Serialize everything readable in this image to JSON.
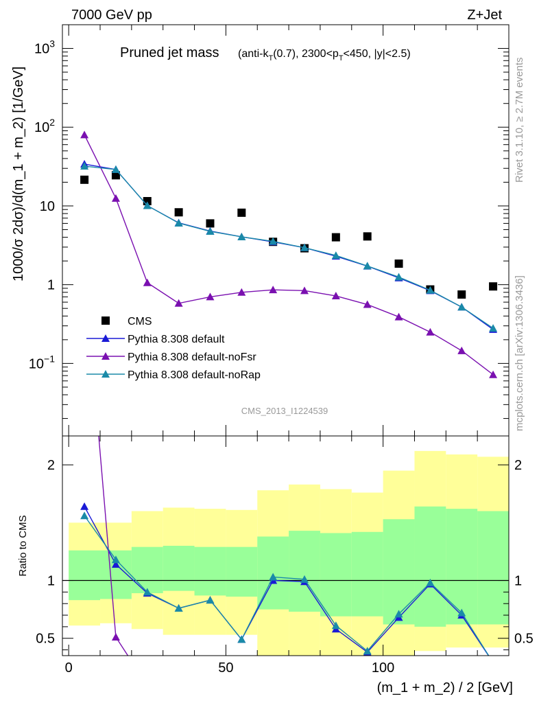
{
  "header": {
    "energy_label": "7000 GeV pp",
    "process_label": "Z+Jet"
  },
  "side_labels": {
    "rivet": "Rivet 3.1.10, ≥ 2.7M events",
    "site": "mcplots.cern.ch [arXiv:1306.3436]"
  },
  "watermark": "CMS_2013_I1224539",
  "colors": {
    "data": "#000000",
    "default": "#1a1ad6",
    "noFsr": "#7a10b0",
    "noRap": "#1a8aa8",
    "band_inner": "#99ff99",
    "band_outer": "#ffff99"
  },
  "chart_data": [
    {
      "type": "scatter",
      "title": "Pruned jet mass",
      "subtitle": "(anti-kT(0.7), 2300<pT<450, |y|<2.5)",
      "xlabel": "(m_1 + m_2) / 2 [GeV]",
      "ylabel": "1000/σ 2dσ)/d(m_1 + m_2) [1/GeV]",
      "y_scale": "log",
      "xlim": [
        -2,
        140
      ],
      "ylim": [
        0.012,
        2000
      ],
      "x": [
        5,
        15,
        25,
        35,
        45,
        55,
        65,
        75,
        85,
        95,
        105,
        115,
        125,
        135
      ],
      "series": [
        {
          "name": "CMS",
          "marker": "square",
          "values": [
            21.5,
            24.5,
            11.5,
            8.3,
            6.0,
            8.2,
            3.5,
            2.9,
            4.0,
            4.1,
            1.85,
            0.87,
            0.75,
            0.95
          ]
        },
        {
          "name": "Pythia 8.308 default",
          "marker": "triangle",
          "values": [
            34,
            29,
            10.1,
            6.1,
            4.8,
            4.05,
            3.5,
            2.95,
            2.3,
            1.72,
            1.22,
            0.84,
            0.52,
            0.27
          ]
        },
        {
          "name": "Pythia 8.308 default-noFsr",
          "marker": "triangle",
          "values": [
            80,
            12.5,
            1.06,
            0.58,
            0.7,
            0.8,
            0.86,
            0.84,
            0.72,
            0.56,
            0.39,
            0.25,
            0.145,
            0.072
          ]
        },
        {
          "name": "Pythia 8.308 default-noRap",
          "marker": "triangle",
          "values": [
            32,
            29,
            10.1,
            6.05,
            4.75,
            4.05,
            3.55,
            2.95,
            2.35,
            1.73,
            1.25,
            0.85,
            0.52,
            0.28
          ]
        }
      ],
      "tick_labels": {
        "y": [
          {
            "value": 0.1,
            "base": "10",
            "exp": "−1"
          },
          {
            "value": 1,
            "text": "1"
          },
          {
            "value": 10,
            "text": "10"
          },
          {
            "value": 100,
            "base": "10",
            "exp": "2"
          },
          {
            "value": 1000,
            "base": "10",
            "exp": "3"
          }
        ]
      },
      "legend": {
        "placement": "bottom-left",
        "entries": [
          "CMS",
          "Pythia 8.308 default",
          "Pythia 8.308 default-noFsr",
          "Pythia 8.308 default-noRap"
        ]
      }
    },
    {
      "type": "line",
      "ylabel": "Ratio to CMS",
      "xlabel": "(m_1 + m_2) / 2 [GeV]",
      "xlim": [
        -2,
        140
      ],
      "ylim": [
        0.35,
        2.25
      ],
      "x_ticks": [
        0,
        50,
        100
      ],
      "y_ticks": [
        0.5,
        1,
        2
      ],
      "bins": [
        [
          0,
          10
        ],
        [
          10,
          20
        ],
        [
          20,
          30
        ],
        [
          30,
          40
        ],
        [
          40,
          50
        ],
        [
          50,
          60
        ],
        [
          60,
          70
        ],
        [
          70,
          80
        ],
        [
          80,
          90
        ],
        [
          90,
          100
        ],
        [
          100,
          110
        ],
        [
          110,
          120
        ],
        [
          120,
          130
        ],
        [
          130,
          140
        ]
      ],
      "band_inner": {
        "low": [
          0.83,
          0.84,
          0.89,
          0.91,
          0.87,
          0.86,
          0.75,
          0.73,
          0.69,
          0.69,
          0.62,
          0.6,
          0.62,
          0.62
        ],
        "high": [
          1.26,
          1.26,
          1.29,
          1.3,
          1.29,
          1.29,
          1.38,
          1.43,
          1.41,
          1.42,
          1.53,
          1.64,
          1.62,
          1.6
        ]
      },
      "band_outer": {
        "low": [
          0.61,
          0.63,
          0.58,
          0.53,
          0.53,
          0.53,
          0.3,
          0.3,
          0.3,
          0.3,
          0.3,
          0.39,
          0.42,
          0.42
        ],
        "high": [
          1.5,
          1.5,
          1.6,
          1.63,
          1.62,
          1.61,
          1.78,
          1.83,
          1.79,
          1.76,
          1.95,
          2.12,
          2.09,
          2.07
        ]
      },
      "series": [
        {
          "name": "Pythia 8.308 default",
          "values": [
            1.64,
            1.14,
            0.89,
            0.76,
            0.83,
            0.49,
            1.0,
            0.99,
            0.58,
            0.38,
            0.68,
            0.97,
            0.7,
            0.29
          ]
        },
        {
          "name": "Pythia 8.308 default-noFsr",
          "values": [
            3.7,
            0.51,
            0.092,
            0.07,
            0.117,
            0.098,
            0.246,
            0.29,
            0.18,
            0.137,
            0.211,
            0.287,
            0.193,
            0.076
          ]
        },
        {
          "name": "Pythia 8.308 default-noRap",
          "values": [
            1.56,
            1.18,
            0.9,
            0.76,
            0.83,
            0.49,
            1.03,
            1.01,
            0.61,
            0.39,
            0.71,
            0.98,
            0.72,
            0.29
          ]
        }
      ]
    }
  ]
}
